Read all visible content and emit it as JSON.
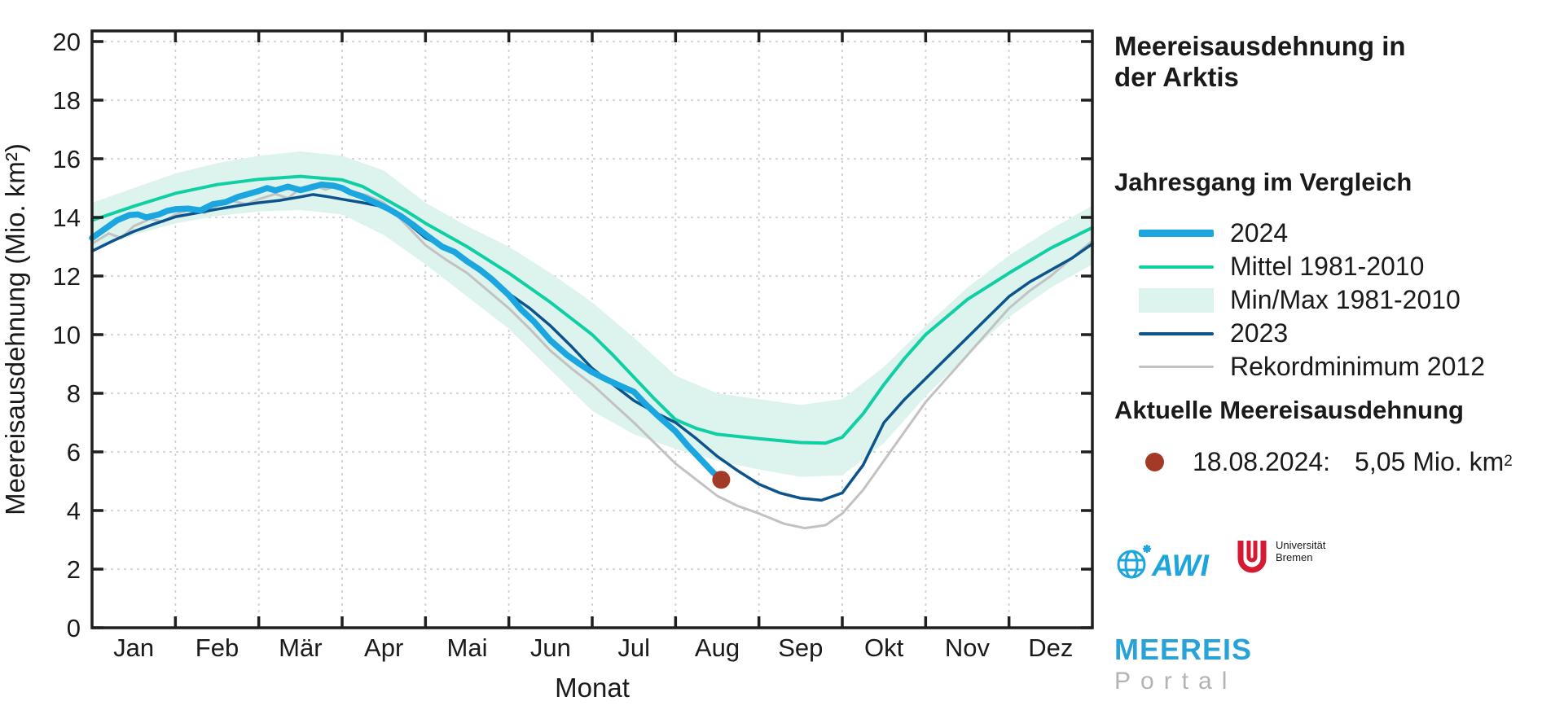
{
  "panel": {
    "title_line1": "Meereisausdehnung in",
    "title_line2": "der Arktis",
    "legend_heading": "Jahresgang im Vergleich",
    "legend": [
      {
        "label": "2024",
        "type": "line",
        "color": "#1ba6e0",
        "weight": 9
      },
      {
        "label": "Mittel 1981-2010",
        "type": "line",
        "color": "#10cfa4",
        "weight": 4
      },
      {
        "label": "Min/Max 1981-2010",
        "type": "band",
        "color": "#ddf3ee",
        "weight": 30
      },
      {
        "label": "2023",
        "type": "line",
        "color": "#0d548c",
        "weight": 4
      },
      {
        "label": "Rekordminimum 2012",
        "type": "line",
        "color": "#c2c2c2",
        "weight": 3
      }
    ],
    "current_heading": "Aktuelle Meereisausdehnung",
    "current": {
      "date": "18.08.2024:",
      "value": "5,05 Mio. km",
      "sup": "2",
      "marker_color": "#a33a28"
    },
    "logos": {
      "awi_text": "AWI",
      "awi_color": "#1ea6dc",
      "bremen_color": "#d61a34",
      "bremen_line1": "Universität",
      "bremen_line2": "Bremen",
      "meereis": "MEEREIS",
      "portal": "Portal"
    }
  },
  "chart_data": {
    "type": "line",
    "title": "Meereisausdehnung in der Arktis",
    "xlabel": "Monat",
    "ylabel": "Meereisausdehnung (Mio. km²)",
    "x_ticks": [
      "Jan",
      "Feb",
      "Mär",
      "Apr",
      "Mai",
      "Jun",
      "Jul",
      "Aug",
      "Sep",
      "Okt",
      "Nov",
      "Dez"
    ],
    "x_unit_months": true,
    "ylim": [
      0,
      20
    ],
    "ytick_step": 2,
    "grid": true,
    "legend_position": "right",
    "band": {
      "name": "Min/Max 1981-2010",
      "color": "#ddf3ee",
      "x": [
        0,
        0.5,
        1,
        1.5,
        2,
        2.5,
        3,
        3.5,
        4,
        4.5,
        5,
        5.5,
        6,
        6.5,
        7,
        7.5,
        8,
        8.5,
        9,
        9.5,
        10,
        10.5,
        11,
        11.5,
        12
      ],
      "upper": [
        14.5,
        15.0,
        15.5,
        15.85,
        16.1,
        16.25,
        16.1,
        15.6,
        14.5,
        13.7,
        13.0,
        12.1,
        11.1,
        9.9,
        8.6,
        8.0,
        7.8,
        7.6,
        7.8,
        8.9,
        10.3,
        11.6,
        12.7,
        13.6,
        14.4
      ],
      "lower": [
        12.9,
        13.4,
        13.8,
        14.05,
        14.2,
        14.25,
        14.1,
        13.4,
        12.4,
        11.3,
        10.2,
        8.8,
        7.4,
        6.6,
        6.1,
        5.7,
        5.4,
        5.15,
        5.2,
        6.3,
        7.9,
        9.3,
        10.6,
        11.6,
        12.4
      ]
    },
    "series": [
      {
        "name": "Rekordminimum 2012",
        "color": "#c2c2c2",
        "width": 3,
        "x": [
          0,
          0.2,
          0.35,
          0.5,
          0.7,
          0.85,
          1,
          1.2,
          1.35,
          1.5,
          1.7,
          1.85,
          2,
          2.2,
          2.35,
          2.5,
          2.65,
          2.8,
          2.95,
          3.1,
          3.3,
          3.5,
          3.75,
          4,
          4.25,
          4.5,
          4.75,
          5,
          5.25,
          5.5,
          5.75,
          6,
          6.25,
          6.5,
          6.75,
          7,
          7.25,
          7.5,
          7.75,
          8,
          8.3,
          8.55,
          8.8,
          9,
          9.25,
          9.5,
          9.75,
          10,
          10.25,
          10.5,
          10.75,
          11,
          11.25,
          11.5,
          11.75,
          12
        ],
        "y": [
          13.1,
          13.45,
          13.3,
          13.7,
          13.95,
          13.85,
          14.1,
          14.3,
          14.15,
          14.4,
          14.55,
          14.45,
          14.62,
          14.8,
          14.65,
          15.0,
          15.12,
          14.95,
          15.1,
          14.9,
          14.75,
          14.5,
          13.8,
          13.05,
          12.55,
          12.1,
          11.5,
          10.9,
          10.2,
          9.45,
          8.85,
          8.3,
          7.65,
          7.0,
          6.3,
          5.6,
          5.05,
          4.5,
          4.15,
          3.9,
          3.55,
          3.4,
          3.5,
          3.9,
          4.7,
          5.7,
          6.7,
          7.7,
          8.5,
          9.3,
          10.1,
          10.9,
          11.5,
          12.0,
          12.6,
          13.2
        ]
      },
      {
        "name": "Mittel 1981-2010",
        "color": "#10cfa4",
        "width": 4,
        "x": [
          0,
          0.5,
          1,
          1.5,
          2,
          2.5,
          3,
          3.25,
          3.5,
          3.75,
          4,
          4.25,
          4.5,
          4.75,
          5,
          5.25,
          5.5,
          5.75,
          6,
          6.25,
          6.5,
          6.75,
          7,
          7.25,
          7.5,
          8,
          8.5,
          8.8,
          9,
          9.25,
          9.5,
          9.75,
          10,
          10.5,
          11,
          11.5,
          12
        ],
        "y": [
          13.9,
          14.38,
          14.82,
          15.12,
          15.3,
          15.4,
          15.28,
          15.05,
          14.65,
          14.25,
          13.8,
          13.4,
          13.0,
          12.55,
          12.1,
          11.6,
          11.1,
          10.55,
          10.0,
          9.3,
          8.55,
          7.8,
          7.1,
          6.8,
          6.6,
          6.45,
          6.32,
          6.3,
          6.5,
          7.3,
          8.3,
          9.2,
          10.0,
          11.2,
          12.1,
          12.95,
          13.65
        ]
      },
      {
        "name": "2023",
        "color": "#0d548c",
        "width": 3.5,
        "x": [
          0,
          0.25,
          0.5,
          0.75,
          1,
          1.25,
          1.5,
          1.75,
          2,
          2.25,
          2.5,
          2.65,
          2.8,
          3,
          3.25,
          3.5,
          3.75,
          4,
          4.25,
          4.5,
          4.75,
          5,
          5.25,
          5.5,
          5.75,
          6,
          6.25,
          6.5,
          6.75,
          7,
          7.25,
          7.5,
          7.75,
          8,
          8.25,
          8.5,
          8.75,
          9,
          9.25,
          9.5,
          9.75,
          10,
          10.25,
          10.5,
          10.75,
          11,
          11.25,
          11.5,
          11.75,
          12
        ],
        "y": [
          12.85,
          13.2,
          13.52,
          13.78,
          14.02,
          14.15,
          14.28,
          14.4,
          14.5,
          14.58,
          14.7,
          14.78,
          14.72,
          14.62,
          14.5,
          14.36,
          13.9,
          13.3,
          12.95,
          12.55,
          12.0,
          11.4,
          10.9,
          10.3,
          9.6,
          8.85,
          8.3,
          7.75,
          7.35,
          7.0,
          6.45,
          5.85,
          5.35,
          4.9,
          4.6,
          4.42,
          4.35,
          4.6,
          5.55,
          7.0,
          7.8,
          8.5,
          9.2,
          9.9,
          10.6,
          11.3,
          11.8,
          12.2,
          12.6,
          13.1
        ]
      },
      {
        "name": "2024",
        "color": "#1ba6e0",
        "width": 7.5,
        "x": [
          0,
          0.15,
          0.3,
          0.45,
          0.55,
          0.65,
          0.8,
          0.9,
          1.0,
          1.15,
          1.3,
          1.45,
          1.6,
          1.75,
          1.9,
          2.0,
          2.1,
          2.2,
          2.35,
          2.5,
          2.6,
          2.75,
          2.9,
          3.0,
          3.1,
          3.25,
          3.4,
          3.55,
          3.7,
          3.85,
          4.0,
          4.2,
          4.35,
          4.5,
          4.65,
          4.8,
          5.0,
          5.15,
          5.3,
          5.5,
          5.7,
          5.85,
          6.0,
          6.15,
          6.3,
          6.5,
          6.65,
          6.8,
          7.0,
          7.15,
          7.3,
          7.45,
          7.55
        ],
        "y": [
          13.3,
          13.6,
          13.9,
          14.08,
          14.1,
          14.0,
          14.1,
          14.22,
          14.28,
          14.3,
          14.24,
          14.45,
          14.52,
          14.7,
          14.82,
          14.9,
          15.0,
          14.92,
          15.05,
          14.93,
          15.0,
          15.12,
          15.08,
          15.0,
          14.85,
          14.7,
          14.5,
          14.3,
          14.05,
          13.75,
          13.42,
          13.0,
          12.82,
          12.5,
          12.22,
          11.88,
          11.35,
          10.85,
          10.45,
          9.8,
          9.3,
          9.0,
          8.72,
          8.5,
          8.3,
          8.05,
          7.6,
          7.2,
          6.7,
          6.2,
          5.75,
          5.3,
          5.05
        ]
      }
    ],
    "marker": {
      "label": "18.08.2024",
      "x": 7.548,
      "y": 5.05,
      "color": "#a33a28"
    }
  }
}
